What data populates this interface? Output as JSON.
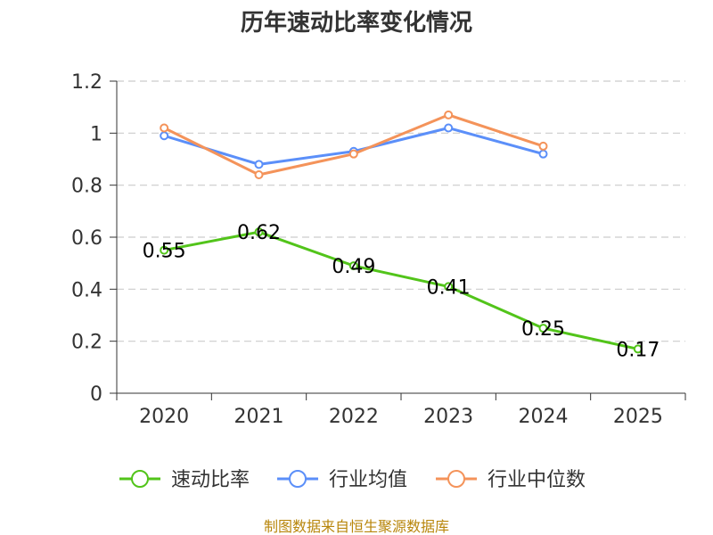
{
  "chart_data": {
    "type": "line",
    "title": "历年速动比率变化情况",
    "categories": [
      "2020",
      "2021",
      "2022",
      "2023",
      "2024",
      "2025"
    ],
    "ylim": [
      0,
      1.2
    ],
    "yticks": [
      "0",
      "0.2",
      "0.4",
      "0.6",
      "0.8",
      "1",
      "1.2"
    ],
    "grid": true,
    "legend_position": "bottom",
    "series": [
      {
        "name": "速动比率",
        "color": "#52c41a",
        "values": [
          0.55,
          0.62,
          0.49,
          0.41,
          0.25,
          0.17
        ],
        "labels": [
          "0.55",
          "0.62",
          "0.49",
          "0.41",
          "0.25",
          "0.17"
        ]
      },
      {
        "name": "行业均值",
        "color": "#5b8ff9",
        "values": [
          0.99,
          0.88,
          0.93,
          1.02,
          0.92,
          null
        ]
      },
      {
        "name": "行业中位数",
        "color": "#f4935a",
        "values": [
          1.02,
          0.84,
          0.92,
          1.07,
          0.95,
          null
        ]
      }
    ],
    "source": "制图数据来自恒生聚源数据库"
  }
}
